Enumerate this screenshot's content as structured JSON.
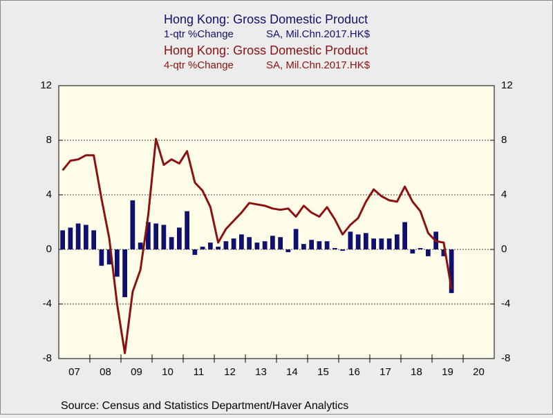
{
  "chart_data": {
    "type": "bar",
    "series": [
      {
        "name": "Hong Kong: Gross Domestic Product",
        "transformation": "1-qtr %Change",
        "units": "SA, Mil.Chn.2017.HK$",
        "type": "bar",
        "axis": "y",
        "color": "#10106e",
        "values": [
          1.4,
          1.6,
          1.9,
          1.8,
          1.4,
          -1.2,
          -1.1,
          -2.0,
          -3.5,
          3.6,
          0.5,
          2.0,
          1.9,
          1.8,
          0.9,
          1.6,
          2.8,
          -0.4,
          0.2,
          0.5,
          0.2,
          0.6,
          0.8,
          1.1,
          0.9,
          0.5,
          0.6,
          1.0,
          0.9,
          -0.2,
          1.5,
          0.4,
          0.7,
          0.6,
          0.6,
          0.1,
          -0.1,
          1.3,
          1.1,
          1.2,
          0.8,
          0.8,
          0.8,
          1.1,
          2.0,
          -0.3,
          0.1,
          -0.5,
          1.3,
          -0.5,
          -3.2
        ]
      },
      {
        "name": "Hong Kong: Gross Domestic Product",
        "transformation": "4-qtr %Change",
        "units": "SA, Mil.Chn.2017.HK$",
        "type": "line",
        "axis": "y2",
        "color": "#8b1111",
        "values": [
          5.8,
          6.5,
          6.6,
          6.9,
          6.9,
          3.7,
          0.8,
          -4.0,
          -7.6,
          -3.1,
          -1.5,
          2.5,
          8.1,
          6.2,
          6.6,
          6.3,
          7.2,
          4.9,
          4.3,
          3.1,
          0.5,
          1.5,
          2.1,
          2.7,
          3.4,
          3.3,
          3.2,
          3.0,
          2.9,
          3.0,
          2.4,
          3.2,
          2.7,
          2.4,
          3.1,
          2.2,
          1.1,
          1.8,
          2.3,
          3.5,
          4.4,
          3.9,
          3.6,
          3.5,
          4.6,
          3.5,
          2.8,
          1.2,
          0.6,
          0.5,
          -2.9
        ]
      }
    ],
    "xticklabels": [
      "07",
      "08",
      "09",
      "10",
      "11",
      "12",
      "13",
      "14",
      "15",
      "16",
      "17",
      "18",
      "19",
      "20"
    ],
    "ylim": [
      -8,
      12
    ],
    "yticks": [
      -8,
      -4,
      0,
      4,
      8,
      12
    ],
    "y2lim": [
      -8,
      12
    ],
    "y2ticks": [
      -8,
      -4,
      0,
      4,
      8,
      12
    ],
    "grid": true,
    "source": "Source:  Census and Statistics Department/Haver Analytics"
  }
}
